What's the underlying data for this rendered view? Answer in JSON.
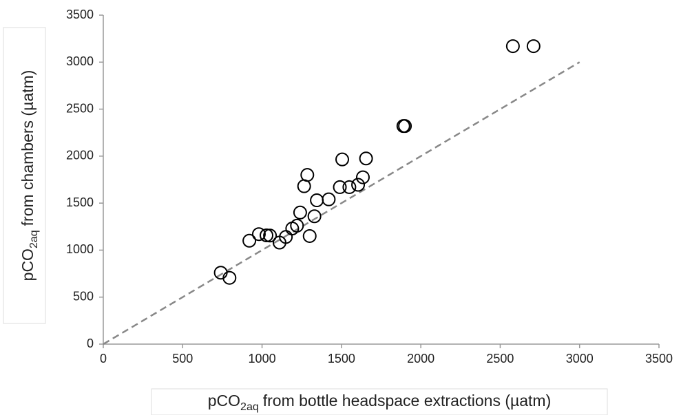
{
  "chart_data": {
    "type": "scatter",
    "x_label": {
      "prefix": "pCO",
      "subscript": "2aq",
      "suffix": "from bottle headspace extractions (µatm)"
    },
    "y_label": {
      "prefix": "pCO",
      "subscript": "2aq",
      "suffix": "from chambers (µatm)"
    },
    "xlim": [
      0,
      3500
    ],
    "ylim": [
      0,
      3500
    ],
    "xticks": [
      0,
      500,
      1000,
      1500,
      2000,
      2500,
      3000,
      3500
    ],
    "yticks": [
      0,
      500,
      1000,
      1500,
      2000,
      2500,
      3000,
      3500
    ],
    "grid": false,
    "series": [
      {
        "color": "#000000",
        "x": [
          740,
          795,
          920,
          980,
          1028,
          1050,
          1110,
          1150,
          1190,
          1220,
          1240,
          1265,
          1285,
          1300,
          1330,
          1345,
          1420,
          1490,
          1505,
          1550,
          1605,
          1635,
          1655,
          1890,
          1900,
          2580,
          2710
        ],
        "values": [
          760,
          705,
          1100,
          1170,
          1157,
          1155,
          1080,
          1140,
          1230,
          1260,
          1400,
          1680,
          1800,
          1150,
          1360,
          1530,
          1540,
          1670,
          1965,
          1670,
          1695,
          1775,
          1975,
          2320,
          2320,
          3170,
          3170
        ]
      }
    ],
    "reference_line": {
      "x": [
        0,
        3000
      ],
      "y": [
        0,
        3000
      ],
      "color": "#888888"
    }
  }
}
